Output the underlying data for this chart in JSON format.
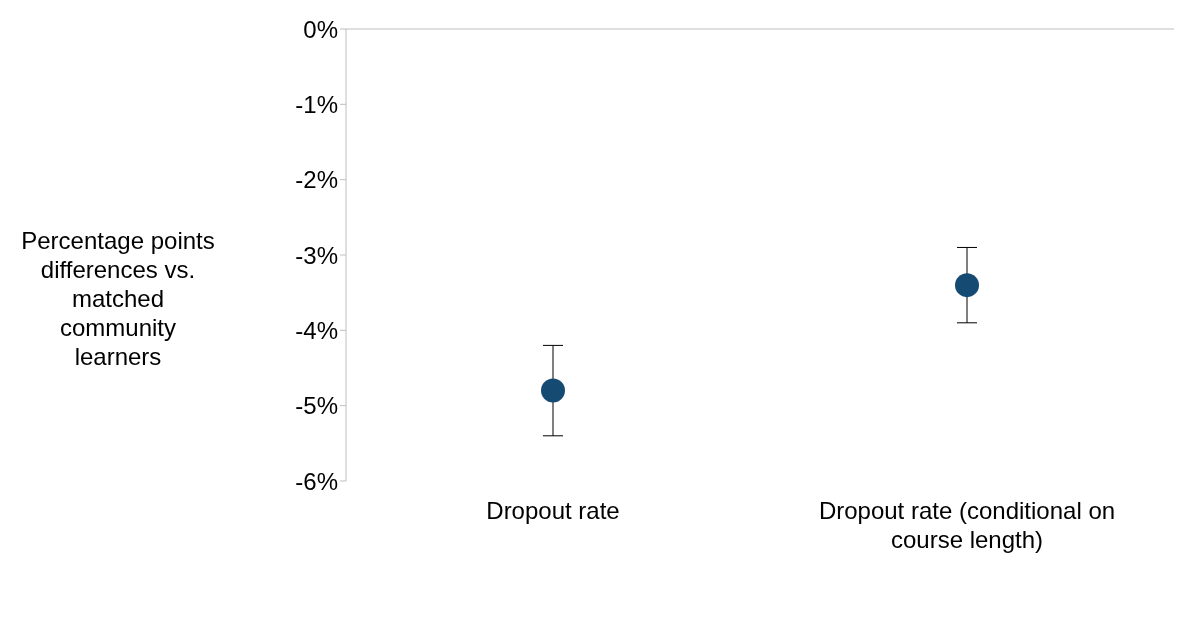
{
  "chart_data": {
    "type": "scatter",
    "ylabel": "Percentage points differences vs. matched community learners",
    "categories": [
      "Dropout rate",
      "Dropout rate (conditional on course length)"
    ],
    "series": [
      {
        "color": "#154a72",
        "values": [
          -4.8,
          -3.4
        ],
        "errors": [
          [
            -5.4,
            -4.2
          ],
          [
            -3.9,
            -2.9
          ]
        ]
      }
    ],
    "ylim": [
      -6,
      0
    ],
    "yticks": [
      {
        "value": -6,
        "label": "-6%"
      },
      {
        "value": -5,
        "label": "-5%"
      },
      {
        "value": -4,
        "label": "-4%"
      },
      {
        "value": -3,
        "label": "-3%"
      },
      {
        "value": -2,
        "label": "-2%"
      },
      {
        "value": -1,
        "label": "-1%"
      },
      {
        "value": 0,
        "label": "0%"
      }
    ],
    "grid": false,
    "legend": false,
    "marker": "circle"
  }
}
